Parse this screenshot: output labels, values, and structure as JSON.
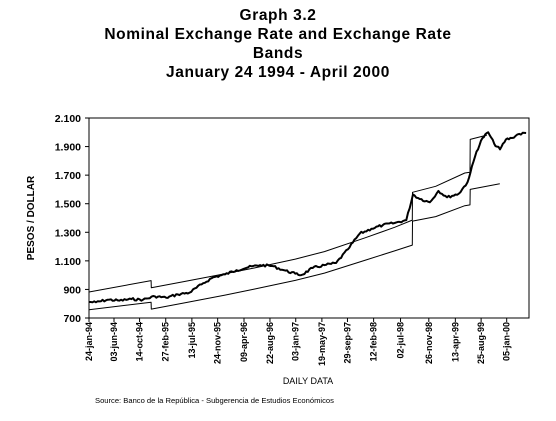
{
  "title_lines": [
    "Graph 3.2",
    "Nominal Exchange Rate and Exchange Rate",
    "Bands",
    "January 24 1994 - April 2000"
  ],
  "source": "Source: Banco de la República - Subgerencia de Estudios Económicos",
  "chart_data": {
    "type": "line",
    "title": "Graph 3.2 Nominal Exchange Rate and Exchange Rate Bands January 24 1994 - April 2000",
    "xlabel": "DAILY DATA",
    "ylabel": "PESOS / DOLLAR",
    "ylim": [
      700,
      2100
    ],
    "xlim": [
      "1994-01-24",
      "2000-04-30"
    ],
    "grid": false,
    "legend": "none",
    "y_ticks": [
      700,
      900,
      1100,
      1300,
      1500,
      1700,
      1900,
      2100
    ],
    "y_tick_labels": [
      "700",
      "900",
      "1.100",
      "1.300",
      "1.500",
      "1.700",
      "1.900",
      "2.100"
    ],
    "x_ticks": [
      "1994-01-24",
      "1994-06-03",
      "1994-10-14",
      "1995-02-27",
      "1995-07-13",
      "1995-11-24",
      "1996-04-09",
      "1996-08-22",
      "1997-01-03",
      "1997-05-19",
      "1997-09-29",
      "1998-02-12",
      "1998-07-02",
      "1998-11-26",
      "1999-04-13",
      "1999-08-25",
      "2000-01-05"
    ],
    "x_tick_labels": [
      "24-jan-94",
      "03-jun-94",
      "14-oct-94",
      "27-feb-95",
      "13-jul-95",
      "24-nov-95",
      "09-apr-96",
      "22-aug-96",
      "03-jan-97",
      "19-may-97",
      "29-sep-97",
      "12-feb-98",
      "02-jul-98",
      "26-nov-98",
      "13-apr-99",
      "25-aug-99",
      "05-jan-00"
    ],
    "series": [
      {
        "role": "upper band",
        "color": "#000000",
        "x": [
          "1994-01-24",
          "1994-12-13",
          "1994-12-14",
          "1995-06-01",
          "1996-01-01",
          "1996-06-01",
          "1997-01-01",
          "1997-06-01",
          "1998-01-01",
          "1998-06-01",
          "1998-09-01",
          "1998-09-02",
          "1999-01-01",
          "1999-06-01",
          "1999-06-28",
          "1999-06-29",
          "1999-09-24"
        ],
        "values": [
          882,
          962,
          912,
          955,
          1010,
          1050,
          1112,
          1165,
          1262,
          1335,
          1385,
          1580,
          1622,
          1715,
          1720,
          1950,
          1980
        ]
      },
      {
        "role": "lower band",
        "color": "#000000",
        "x": [
          "1994-01-24",
          "1994-12-13",
          "1994-12-14",
          "1995-06-01",
          "1996-01-01",
          "1996-06-01",
          "1997-01-01",
          "1997-06-01",
          "1998-01-01",
          "1998-06-01",
          "1998-09-01",
          "1998-09-02",
          "1999-01-01",
          "1999-06-01",
          "1999-06-28",
          "1999-06-29",
          "1999-11-30"
        ],
        "values": [
          758,
          810,
          762,
          805,
          860,
          902,
          963,
          1014,
          1105,
          1170,
          1210,
          1378,
          1410,
          1486,
          1492,
          1600,
          1640
        ]
      },
      {
        "role": "nominal exchange rate",
        "color": "#000000",
        "x": [
          "1994-01-24",
          "1994-03-01",
          "1994-05-01",
          "1994-07-01",
          "1994-09-01",
          "1994-11-01",
          "1995-01-01",
          "1995-03-01",
          "1995-05-01",
          "1995-07-01",
          "1995-09-01",
          "1995-11-01",
          "1996-01-01",
          "1996-03-01",
          "1996-05-01",
          "1996-07-01",
          "1996-09-01",
          "1996-11-01",
          "1997-01-01",
          "1997-02-01",
          "1997-04-01",
          "1997-06-01",
          "1997-08-01",
          "1997-10-01",
          "1997-12-01",
          "1998-02-01",
          "1998-04-01",
          "1998-06-01",
          "1998-08-01",
          "1998-09-05",
          "1998-10-01",
          "1998-12-01",
          "1999-01-15",
          "1999-03-01",
          "1999-05-01",
          "1999-06-15",
          "1999-07-01",
          "1999-08-01",
          "1999-09-01",
          "1999-10-01",
          "1999-11-01",
          "1999-12-01",
          "2000-01-01",
          "2000-02-01",
          "2000-03-01",
          "2000-04-15"
        ],
        "values": [
          812,
          810,
          828,
          822,
          832,
          828,
          852,
          842,
          865,
          878,
          935,
          985,
          1005,
          1035,
          1055,
          1070,
          1065,
          1035,
          1010,
          1000,
          1050,
          1070,
          1085,
          1180,
          1290,
          1325,
          1350,
          1365,
          1385,
          1565,
          1540,
          1510,
          1590,
          1545,
          1570,
          1650,
          1720,
          1865,
          1960,
          2000,
          1920,
          1880,
          1950,
          1960,
          1985,
          1995
        ]
      }
    ]
  }
}
